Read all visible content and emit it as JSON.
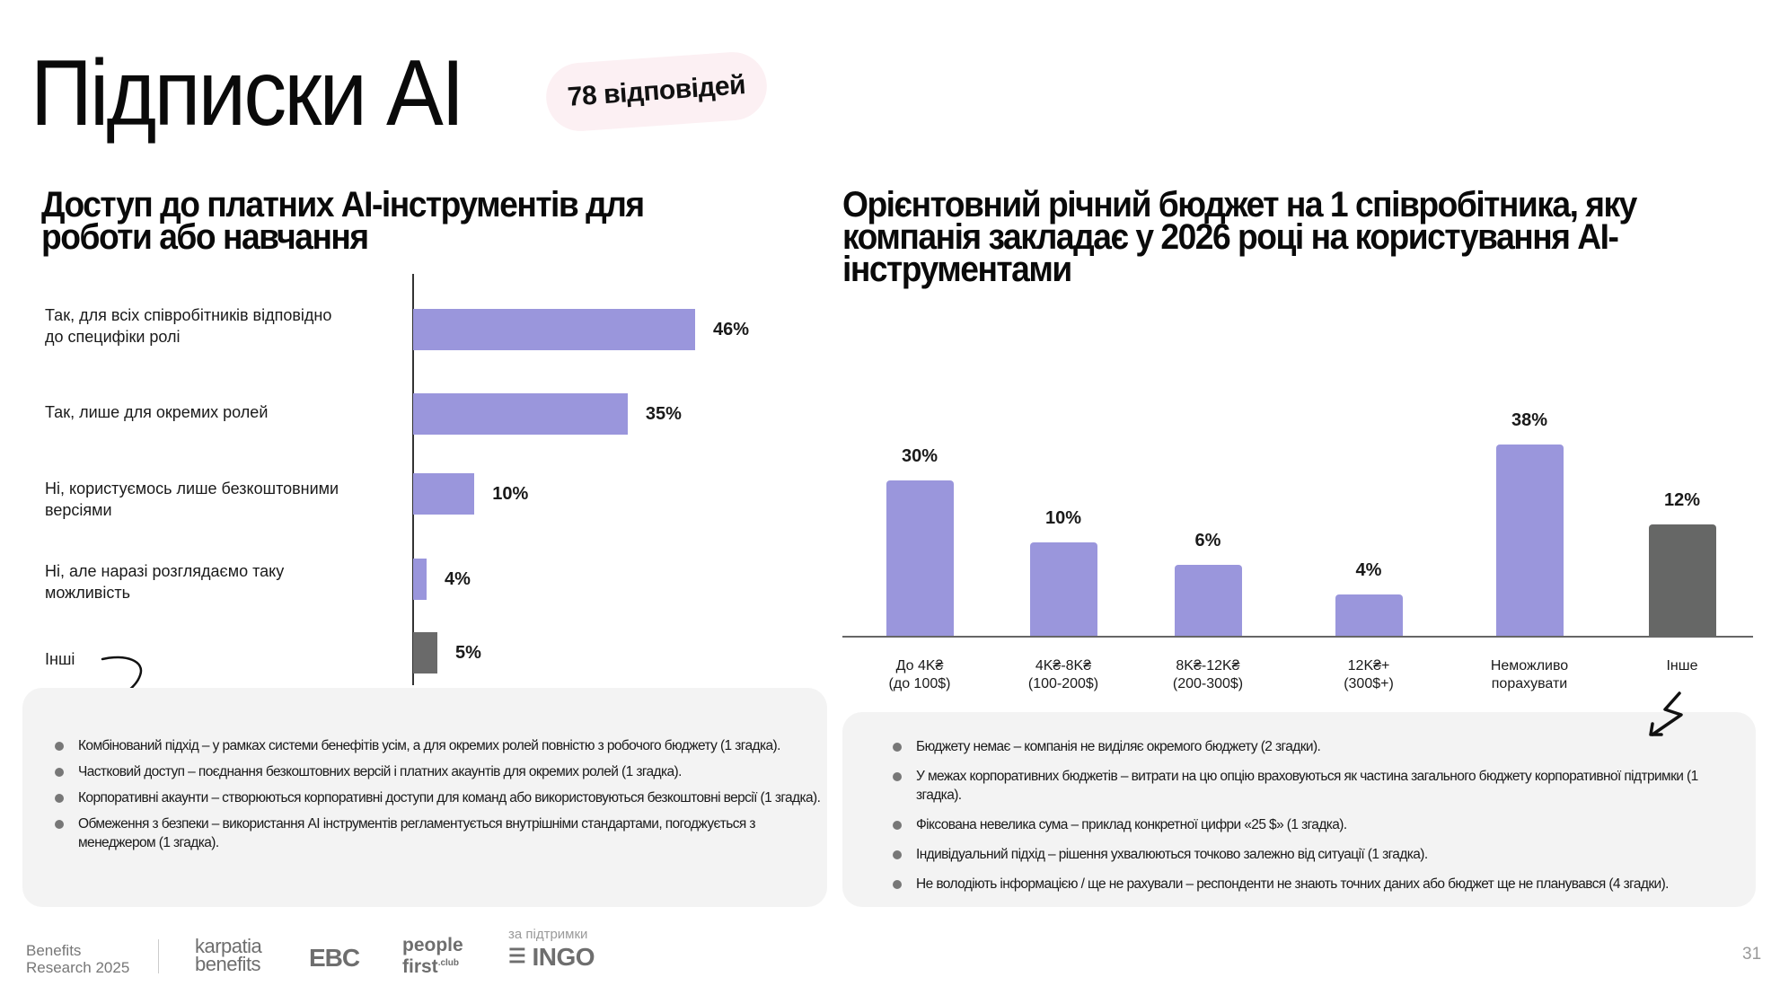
{
  "header": {
    "title": "Підписки AI",
    "responses_badge": "78 відповідей"
  },
  "colors": {
    "bar_primary": "#9a96dc",
    "bar_other": "#6a6a6a",
    "badge_bg": "#fcf0f3",
    "notes_bg": "#f3f3f3"
  },
  "chart_data": [
    {
      "type": "bar",
      "orientation": "horizontal",
      "title": "Доступ до платних AI-інструментів для роботи або навчання",
      "categories": [
        "Так, для всіх співробітників відповідно до специфіки ролі",
        "Так, лише для окремих ролей",
        "Ні, користуємось лише безкоштовними версіями",
        "Ні, але наразі розглядаємо таку можливість",
        "Інші"
      ],
      "values": [
        46,
        35,
        10,
        4,
        5
      ],
      "value_labels": [
        "46%",
        "35%",
        "10%",
        "4%",
        "5%"
      ],
      "unit": "%",
      "highlight_other_index": 4,
      "grid": false,
      "xlabel": "",
      "ylabel": ""
    },
    {
      "type": "bar",
      "orientation": "vertical",
      "title": "Орієнтовний річний бюджет на 1 співробітника, яку компанія закладає у 2026 році на користування AI-інструментами",
      "categories": [
        [
          "До 4K₴",
          "(до 100$)"
        ],
        [
          "4K₴-8K₴",
          "(100-200$)"
        ],
        [
          "8K₴-12K₴",
          "(200-300$)"
        ],
        [
          "12K₴+",
          "(300$+)"
        ],
        [
          "Неможливо",
          "порахувати"
        ],
        [
          "Інше"
        ]
      ],
      "values": [
        30,
        10,
        6,
        4,
        38,
        12
      ],
      "value_labels": [
        "30%",
        "10%",
        "6%",
        "4%",
        "38%",
        "12%"
      ],
      "unit": "%",
      "highlight_other_index": 5,
      "grid": false,
      "xlabel": "",
      "ylabel": ""
    }
  ],
  "left_notes": [
    "Комбінований підхід – у рамках системи бенефітів усім, а для окремих ролей повністю з робочого бюджету (1 згадка).",
    "Частковий доступ – поєднання безкоштовних версій і платних акаунтів для окремих ролей (1 згадка).",
    "Корпоративні акаунти – створюються корпоративні доступи для команд або використовуються безкоштовні версії (1 згадка).",
    "Обмеження з безпеки – використання AI інструментів регламентується внутрішніми стандартами, погоджується з менеджером (1 згадка)."
  ],
  "right_notes": [
    "Бюджету немає – компанія не виділяє окремого бюджету (2 згадки).",
    "У межах корпоративних бюджетів – витрати на цю опцію враховуються як частина загального бюджету корпоративної підтримки (1 згадка).",
    "Фіксована невелика сума – приклад конкретної цифри «25 $» (1 згадка).",
    "Індивідуальний підхід – рішення ухвалюються точково залежно від ситуації (1 згадка).",
    "Не володіють інформацією / ще не рахували – респонденти не знають точних даних або бюджет ще не планувався (4 згадки)."
  ],
  "footer": {
    "brand_line1": "Benefits",
    "brand_line2": "Research 2025",
    "logo_karpatia_1": "karpatia",
    "logo_karpatia_2": "benefits",
    "logo_ebc": "EBC",
    "logo_people_1": "people",
    "logo_people_2": "first",
    "logo_people_sup": ".club",
    "support_label": "за підтримки",
    "logo_ingo": "INGO",
    "page_number": "31"
  }
}
